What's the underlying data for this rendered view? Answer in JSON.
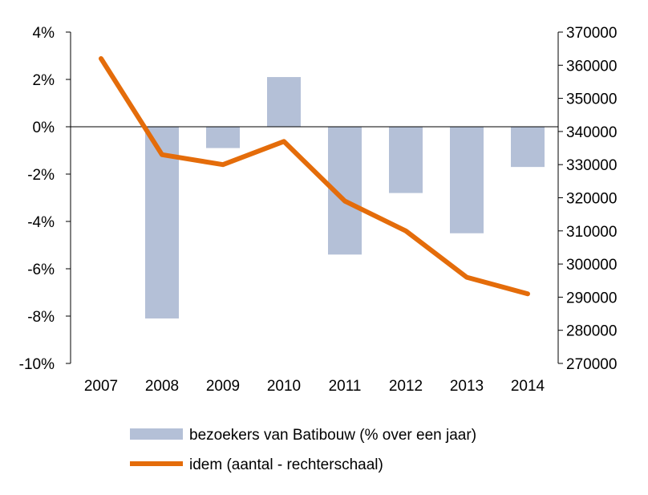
{
  "chart_data": {
    "type": "bar+line",
    "categories": [
      "2007",
      "2008",
      "2009",
      "2010",
      "2011",
      "2012",
      "2013",
      "2014"
    ],
    "series": [
      {
        "name": "bezoekers van Batibouw (% over een jaar)",
        "type": "bar",
        "axis": "left",
        "color": "#b4c0d7",
        "values": [
          null,
          -8.1,
          -0.9,
          2.1,
          -5.4,
          -2.8,
          -4.5,
          -1.7
        ]
      },
      {
        "name": "idem (aantal - rechterschaal)",
        "type": "line",
        "axis": "right",
        "color": "#e46c0a",
        "values": [
          362000,
          333000,
          330000,
          337000,
          319000,
          310000,
          296000,
          291000
        ]
      }
    ],
    "left_axis": {
      "min": -10,
      "max": 4,
      "step": 2,
      "tick_labels": [
        "4%",
        "2%",
        "0%",
        "-2%",
        "-4%",
        "-6%",
        "-8%",
        "-10%"
      ]
    },
    "right_axis": {
      "min": 270000,
      "max": 370000,
      "step": 10000,
      "tick_labels": [
        "370000",
        "360000",
        "350000",
        "340000",
        "330000",
        "320000",
        "310000",
        "300000",
        "290000",
        "280000",
        "270000"
      ]
    },
    "grid": false,
    "legend_position": "bottom"
  }
}
